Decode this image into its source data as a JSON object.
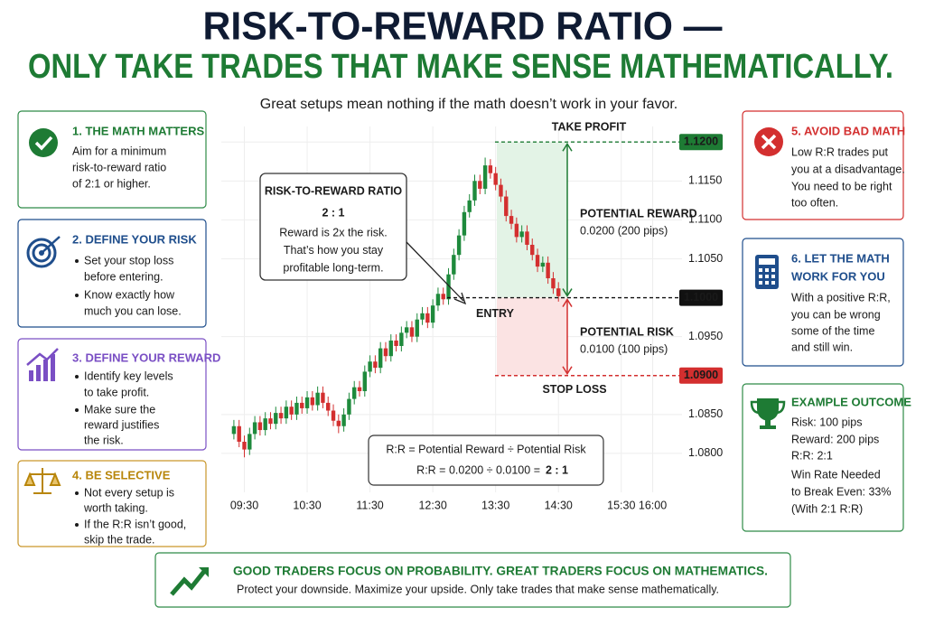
{
  "header": {
    "title_line1": "RISK-TO-REWARD RATIO —",
    "title_line2": "ONLY TAKE TRADES THAT MAKE SENSE MATHEMATICALLY.",
    "subtitle": "Great setups mean nothing if the math doesn’t work in your favor."
  },
  "left_panels": [
    {
      "title": "1. THE MATH MATTERS",
      "lines": [
        "Aim for a minimum",
        "risk-to-reward ratio",
        "of 2:1 or higher."
      ]
    },
    {
      "title": "2. DEFINE YOUR RISK",
      "bullets": [
        [
          "Set your stop loss",
          "before entering."
        ],
        [
          "Know exactly how",
          "much you can lose."
        ]
      ]
    },
    {
      "title": "3. DEFINE YOUR REWARD",
      "bullets": [
        [
          "Identify key levels",
          "to take profit."
        ],
        [
          "Make sure the",
          "reward justifies",
          "the risk."
        ]
      ]
    },
    {
      "title": "4. BE SELECTIVE",
      "bullets": [
        [
          "Not every setup is",
          "worth taking."
        ],
        [
          "If the R:R isn’t good,",
          "skip the trade."
        ]
      ]
    }
  ],
  "right_panels": [
    {
      "title": [
        "5. AVOID BAD MATH"
      ],
      "lines": [
        "Low R:R trades put",
        "you at a disadvantage.",
        "You need to be right",
        "too often."
      ]
    },
    {
      "title": [
        "6. LET THE MATH",
        "WORK FOR YOU"
      ],
      "lines": [
        "With a positive R:R,",
        "you can be wrong",
        "some of the time",
        "and still win."
      ]
    },
    {
      "title": [
        "EXAMPLE OUTCOME"
      ],
      "lines": [
        "Risk: 100 pips",
        "Reward: 200 pips",
        "R:R: 2:1",
        "Win Rate Needed",
        "to Break Even: 33%",
        "(With 2:1 R:R)"
      ]
    }
  ],
  "footer": {
    "headline": "GOOD TRADERS FOCUS ON PROBABILITY. GREAT TRADERS FOCUS ON MATHEMATICS.",
    "text": "Protect your downside. Maximize your upside. Only take trades that make sense mathematically."
  },
  "chart_data": {
    "type": "candlestick",
    "up_color": "#1e8a3c",
    "down_color": "#d32f2f",
    "grid": true,
    "x": [
      "09:20",
      "09:25",
      "09:30",
      "09:35",
      "09:40",
      "09:45",
      "09:50",
      "09:55",
      "10:00",
      "10:05",
      "10:10",
      "10:15",
      "10:20",
      "10:25",
      "10:30",
      "10:35",
      "10:40",
      "10:45",
      "10:50",
      "10:55",
      "11:00",
      "11:05",
      "11:10",
      "11:15",
      "11:20",
      "11:25",
      "11:30",
      "11:35",
      "11:40",
      "11:45",
      "11:50",
      "11:55",
      "12:00",
      "12:05",
      "12:10",
      "12:15",
      "12:20",
      "12:25",
      "12:30",
      "12:35",
      "12:40",
      "12:45",
      "12:50",
      "12:55",
      "13:00",
      "13:05",
      "13:10",
      "13:15",
      "13:20",
      "13:25",
      "13:30",
      "13:35",
      "13:40",
      "13:45",
      "13:50",
      "13:55",
      "14:00",
      "14:05",
      "14:10",
      "14:15",
      "14:20",
      "14:25",
      "14:30"
    ],
    "open": [
      1.0825,
      1.0835,
      1.0815,
      1.0805,
      1.0825,
      1.084,
      1.083,
      1.0845,
      1.0838,
      1.0852,
      1.0845,
      1.086,
      1.085,
      1.0865,
      1.0858,
      1.0872,
      1.0862,
      1.0878,
      1.0865,
      1.0855,
      1.0842,
      1.0835,
      1.085,
      1.087,
      1.0885,
      1.088,
      1.0905,
      1.0918,
      1.091,
      1.0935,
      1.0925,
      1.0945,
      1.0938,
      1.0955,
      1.0962,
      1.095,
      1.0972,
      1.098,
      1.0968,
      1.099,
      1.1005,
      1.0998,
      1.103,
      1.1055,
      1.108,
      1.111,
      1.1125,
      1.115,
      1.114,
      1.117,
      1.116,
      1.1145,
      1.113,
      1.1105,
      1.1095,
      1.1078,
      1.1085,
      1.1068,
      1.1055,
      1.104,
      1.1045,
      1.1025,
      1.1012
    ],
    "high": [
      1.0843,
      1.0843,
      1.0823,
      1.0833,
      1.0848,
      1.0848,
      1.0853,
      1.0853,
      1.086,
      1.086,
      1.0868,
      1.0868,
      1.0873,
      1.0873,
      1.088,
      1.088,
      1.0886,
      1.0886,
      1.0873,
      1.0863,
      1.085,
      1.0858,
      1.0878,
      1.0893,
      1.0893,
      1.0913,
      1.0926,
      1.0926,
      1.0943,
      1.0943,
      1.0953,
      1.0953,
      1.0963,
      1.097,
      1.097,
      1.098,
      1.0988,
      1.0988,
      1.0998,
      1.1013,
      1.1013,
      1.1038,
      1.1063,
      1.1088,
      1.1118,
      1.1133,
      1.1158,
      1.1158,
      1.118,
      1.1178,
      1.1168,
      1.1153,
      1.1138,
      1.1113,
      1.1103,
      1.1093,
      1.1093,
      1.1076,
      1.1063,
      1.1053,
      1.1053,
      1.1033,
      1.102
    ],
    "low": [
      1.0818,
      1.0808,
      1.0795,
      1.0798,
      1.0818,
      1.0823,
      1.0823,
      1.0831,
      1.0831,
      1.0838,
      1.0838,
      1.0843,
      1.0843,
      1.0851,
      1.0851,
      1.0855,
      1.0855,
      1.0858,
      1.0848,
      1.0835,
      1.0826,
      1.0828,
      1.0843,
      1.0863,
      1.0873,
      1.0873,
      1.0898,
      1.0903,
      1.0903,
      1.0918,
      1.0918,
      1.0931,
      1.0931,
      1.0948,
      1.0943,
      1.0943,
      1.0965,
      1.0961,
      1.0961,
      1.0983,
      1.0991,
      1.0991,
      1.1023,
      1.1048,
      1.1073,
      1.1103,
      1.1118,
      1.1133,
      1.1133,
      1.1153,
      1.1138,
      1.1123,
      1.1098,
      1.1088,
      1.1071,
      1.1071,
      1.1061,
      1.1048,
      1.1033,
      1.1033,
      1.1018,
      1.1005,
      1.0995
    ],
    "close": [
      1.0835,
      1.0815,
      1.0805,
      1.0825,
      1.084,
      1.083,
      1.0845,
      1.0838,
      1.0852,
      1.0845,
      1.086,
      1.085,
      1.0865,
      1.0858,
      1.0872,
      1.0862,
      1.0878,
      1.0865,
      1.0855,
      1.0842,
      1.0835,
      1.085,
      1.087,
      1.0885,
      1.088,
      1.0905,
      1.0918,
      1.091,
      1.0935,
      1.0925,
      1.0945,
      1.0938,
      1.0955,
      1.0962,
      1.095,
      1.0972,
      1.098,
      1.0968,
      1.099,
      1.1005,
      1.0998,
      1.103,
      1.1055,
      1.108,
      1.111,
      1.1125,
      1.115,
      1.114,
      1.117,
      1.116,
      1.1145,
      1.113,
      1.1105,
      1.1095,
      1.1078,
      1.1085,
      1.1068,
      1.1055,
      1.104,
      1.1045,
      1.1025,
      1.1012,
      1.1002
    ],
    "xlim": [
      "09:08",
      "16:28"
    ],
    "xticks": [
      "09:30",
      "10:30",
      "11:30",
      "12:30",
      "13:30",
      "14:30",
      "15:30",
      "16:00"
    ],
    "ylim": [
      1.075,
      1.122
    ],
    "yticks": [
      {
        "value": 1.08,
        "label": "1.0800"
      },
      {
        "value": 1.085,
        "label": "1.0850"
      },
      {
        "value": 1.095,
        "label": "1.0950"
      },
      {
        "value": 1.105,
        "label": "1.1050"
      },
      {
        "value": 1.11,
        "label": "1.1100"
      },
      {
        "value": 1.115,
        "label": "1.1150"
      },
      {
        "value": 1.12,
        "label": "1.1200"
      }
    ],
    "levels": [
      {
        "name": "TAKE PROFIT",
        "value": 1.12,
        "value_label": "1.1200",
        "color": "#1e7b34"
      },
      {
        "name": "ENTRY",
        "value": 1.1,
        "value_label": "1.1000",
        "color": "#111111"
      },
      {
        "name": "STOP LOSS",
        "value": 1.09,
        "value_label": "1.0900",
        "color": "#d32f2f"
      }
    ],
    "reward": {
      "label": "POTENTIAL REWARD",
      "text": "0.0200 (200 pips)"
    },
    "risk": {
      "label": "POTENTIAL RISK",
      "text": "0.0100 (100 pips)"
    },
    "callout": {
      "title": "RISK-TO-REWARD RATIO",
      "ratio": "2 : 1",
      "lines": [
        "Reward is 2x the risk.",
        "That’s how you stay",
        "profitable long-term."
      ]
    },
    "formula": {
      "line1": "R:R = Potential Reward ÷ Potential Risk",
      "line2": "R:R = 0.0200 ÷ 0.0100 =",
      "result": "2 : 1"
    }
  }
}
